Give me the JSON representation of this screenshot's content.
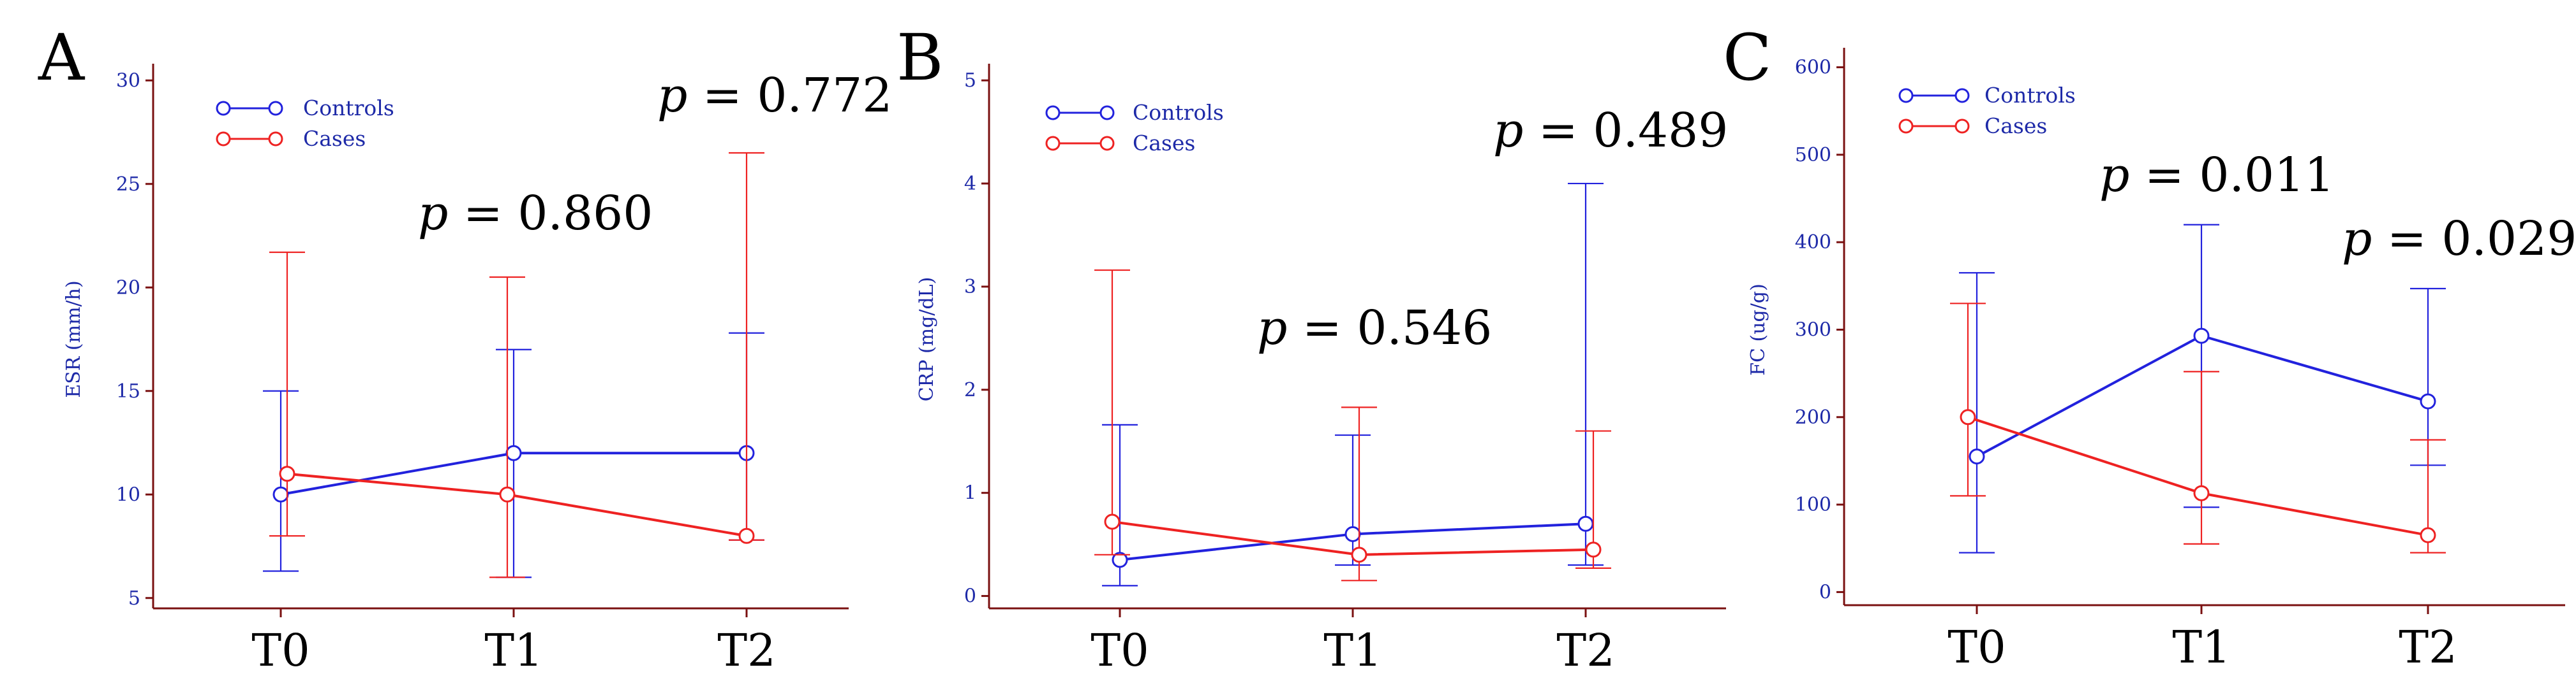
{
  "colors": {
    "controls": "#2222dd",
    "cases": "#ee2222",
    "axis": "#7a1010",
    "axis_text": "#1e2aa8"
  },
  "chart_data": [
    {
      "type": "line",
      "panel": "A",
      "ylabel": "ESR (mm/h)",
      "categories": [
        "T0",
        "T1",
        "T2"
      ],
      "ylim": [
        4.5,
        30.5
      ],
      "yticks": [
        5,
        10,
        15,
        20,
        25,
        30
      ],
      "legend_position": "top-left",
      "series": [
        {
          "name": "Controls",
          "values": [
            10,
            12,
            12
          ],
          "err_low": [
            6.3,
            6,
            7.8
          ],
          "err_high": [
            15,
            17,
            17.8
          ]
        },
        {
          "name": "Cases",
          "values": [
            11,
            10,
            8
          ],
          "err_low": [
            8,
            6,
            7.8
          ],
          "err_high": [
            21.7,
            20.5,
            26.5
          ]
        }
      ],
      "annotations": [
        {
          "italic": "p",
          "text": " = 0.860",
          "near": "T1"
        },
        {
          "italic": "p",
          "text": " = 0.772",
          "near": "T2"
        }
      ]
    },
    {
      "type": "line",
      "panel": "B",
      "ylabel": "CRP (mg/dL)",
      "categories": [
        "T0",
        "T1",
        "T2"
      ],
      "ylim": [
        -0.12,
        5.1
      ],
      "yticks": [
        0,
        1,
        2,
        3,
        4,
        5
      ],
      "legend_position": "top-left",
      "series": [
        {
          "name": "Controls",
          "values": [
            0.35,
            0.6,
            0.7
          ],
          "err_low": [
            0.1,
            0.3,
            0.3
          ],
          "err_high": [
            1.66,
            1.56,
            4.0
          ]
        },
        {
          "name": "Cases",
          "values": [
            0.72,
            0.4,
            0.45
          ],
          "err_low": [
            0.4,
            0.15,
            0.27
          ],
          "err_high": [
            3.16,
            1.83,
            1.6
          ]
        }
      ],
      "annotations": [
        {
          "italic": "p",
          "text": " = 0.546",
          "near": "T1"
        },
        {
          "italic": "p",
          "text": " = 0.489",
          "near": "T2"
        }
      ]
    },
    {
      "type": "line",
      "panel": "C",
      "ylabel": "FC (ug/g)",
      "categories": [
        "T0",
        "T1",
        "T2"
      ],
      "ylim": [
        -15,
        615
      ],
      "yticks": [
        0,
        100,
        200,
        300,
        400,
        500,
        600
      ],
      "legend_position": "top-left",
      "series": [
        {
          "name": "Controls",
          "values": [
            155,
            293,
            218
          ],
          "err_low": [
            45,
            97,
            145
          ],
          "err_high": [
            365,
            420,
            347
          ]
        },
        {
          "name": "Cases",
          "values": [
            200,
            113,
            65
          ],
          "err_low": [
            110,
            55,
            45
          ],
          "err_high": [
            330,
            252,
            174
          ]
        }
      ],
      "annotations": [
        {
          "italic": "p",
          "text": " = 0.011",
          "near": "T1"
        },
        {
          "italic": "p",
          "text": " = 0.029",
          "near": "T2"
        }
      ]
    }
  ]
}
